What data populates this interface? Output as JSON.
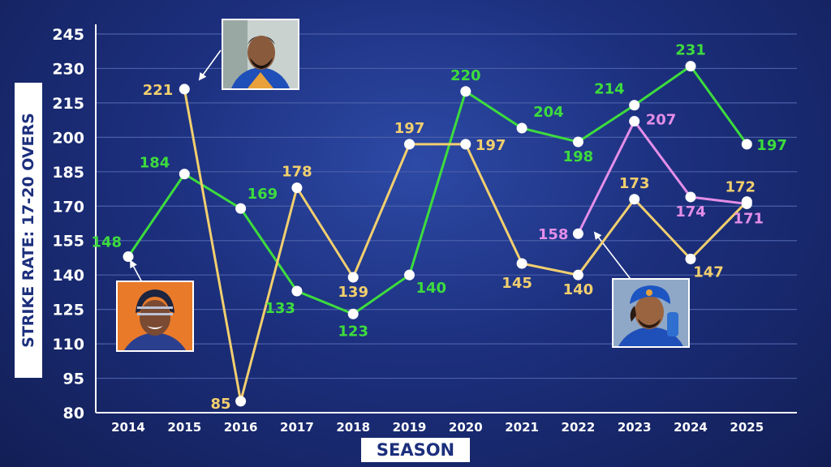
{
  "chart_data": {
    "type": "line",
    "xlabel": "SEASON",
    "ylabel": "STRIKE RATE: 17-20 OVERS",
    "ylim": [
      80,
      245
    ],
    "yticks": [
      80,
      95,
      110,
      125,
      140,
      155,
      170,
      185,
      200,
      215,
      230,
      245
    ],
    "categories": [
      "2014",
      "2015",
      "2016",
      "2017",
      "2018",
      "2019",
      "2020",
      "2021",
      "2022",
      "2023",
      "2024",
      "2025"
    ],
    "grid": true,
    "series": [
      {
        "color": "#3ddc3d",
        "points": [
          {
            "x": "2014",
            "y": 148
          },
          {
            "x": "2015",
            "y": 184
          },
          {
            "x": "2016",
            "y": 169
          },
          {
            "x": "2017",
            "y": 133
          },
          {
            "x": "2018",
            "y": 123
          },
          {
            "x": "2019",
            "y": 140
          },
          {
            "x": "2020",
            "y": 220
          },
          {
            "x": "2021",
            "y": 204
          },
          {
            "x": "2022",
            "y": 198
          },
          {
            "x": "2023",
            "y": 214
          },
          {
            "x": "2024",
            "y": 231
          },
          {
            "x": "2025",
            "y": 197
          }
        ]
      },
      {
        "color": "#f2cf6e",
        "points": [
          {
            "x": "2015",
            "y": 221
          },
          {
            "x": "2016",
            "y": 85
          },
          {
            "x": "2017",
            "y": 178
          },
          {
            "x": "2018",
            "y": 139
          },
          {
            "x": "2019",
            "y": 197
          },
          {
            "x": "2020",
            "y": 197
          },
          {
            "x": "2021",
            "y": 145
          },
          {
            "x": "2022",
            "y": 140
          },
          {
            "x": "2023",
            "y": 173
          },
          {
            "x": "2024",
            "y": 147
          },
          {
            "x": "2025",
            "y": 172
          }
        ]
      },
      {
        "color": "#e38ee8",
        "points": [
          {
            "x": "2022",
            "y": 158
          },
          {
            "x": "2023",
            "y": 207
          },
          {
            "x": "2024",
            "y": 174
          },
          {
            "x": "2025",
            "y": 171
          }
        ]
      }
    ]
  },
  "colors": {
    "background": "#1c2f7d",
    "axis": "#ffffff",
    "grid": "#4a5fa8",
    "marker": "#ffffff"
  },
  "photos": [
    {
      "name": "player-photo-2015",
      "series": 1
    },
    {
      "name": "player-photo-2014",
      "series": 0
    },
    {
      "name": "player-photo-2022",
      "series": 2
    }
  ]
}
